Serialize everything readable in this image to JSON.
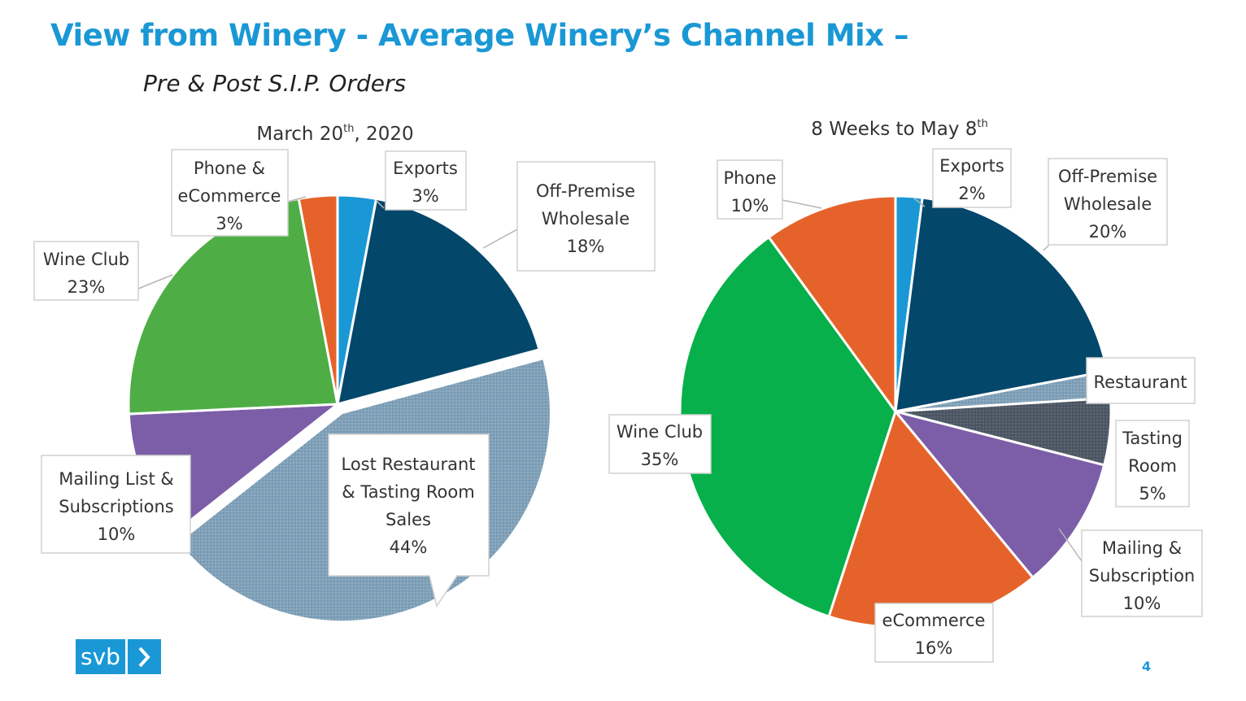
{
  "slide": {
    "title": "View from Winery - Average Winery’s Channel Mix –",
    "subtitle": "Pre & Post S.I.P. Orders",
    "page_number": "4",
    "logo_text": "svb"
  },
  "colors": {
    "blue": "#1a98d5",
    "navy": "#03476b",
    "slate": "#7fa0b8",
    "dark_slate": "#4f5966",
    "green_left": "#4eae45",
    "green_right": "#07b04a",
    "purple": "#7c5ea8",
    "orange": "#e5632a"
  },
  "chart_data": [
    {
      "type": "pie",
      "title_main": "March 20",
      "title_sup": "th",
      "title_tail": ", 2020",
      "slices": [
        {
          "name": "Exports",
          "value": 3,
          "label": "Exports",
          "pct": "3%",
          "color": "#1a98d5"
        },
        {
          "name": "Off-Premise Wholesale",
          "value": 18,
          "label": "Off-Premise Wholesale",
          "pct": "18%",
          "color": "#03476b"
        },
        {
          "name": "Lost Restaurant & Tasting Room Sales",
          "value": 44,
          "label": "Lost Restaurant & Tasting Room Sales",
          "pct": "44%",
          "color": "#7fa0b8",
          "exploded": true
        },
        {
          "name": "Mailing List & Subscriptions",
          "value": 10,
          "label": "Mailing List & Subscriptions",
          "pct": "10%",
          "color": "#7c5ea8"
        },
        {
          "name": "Wine Club",
          "value": 23,
          "label": "Wine Club",
          "pct": "23%",
          "color": "#4eae45"
        },
        {
          "name": "Phone & eCommerce",
          "value": 3,
          "label": "Phone & eCommerce",
          "pct": "3%",
          "color": "#e5632a"
        }
      ]
    },
    {
      "type": "pie",
      "title_main": "8 Weeks to May 8",
      "title_sup": "th",
      "title_tail": "",
      "slices": [
        {
          "name": "Exports",
          "value": 2,
          "label": "Exports",
          "pct": "2%",
          "color": "#1a98d5"
        },
        {
          "name": "Off-Premise Wholesale",
          "value": 20,
          "label": "Off-Premise Wholesale",
          "pct": "20%",
          "color": "#03476b"
        },
        {
          "name": "Restaurant",
          "value": 2,
          "label": "Restaurant",
          "pct": "",
          "color": "#7fa0b8"
        },
        {
          "name": "Tasting Room",
          "value": 5,
          "label": "Tasting Room",
          "pct": "5%",
          "color": "#4f5966"
        },
        {
          "name": "Mailing & Subscription",
          "value": 10,
          "label": "Mailing & Subscription",
          "pct": "10%",
          "color": "#7c5ea8"
        },
        {
          "name": "eCommerce",
          "value": 16,
          "label": "eCommerce",
          "pct": "16%",
          "color": "#e5632a"
        },
        {
          "name": "Wine Club",
          "value": 35,
          "label": "Wine Club",
          "pct": "35%",
          "color": "#07b04a"
        },
        {
          "name": "Phone",
          "value": 10,
          "label": "Phone",
          "pct": "10%",
          "color": "#e5632a"
        }
      ]
    }
  ]
}
